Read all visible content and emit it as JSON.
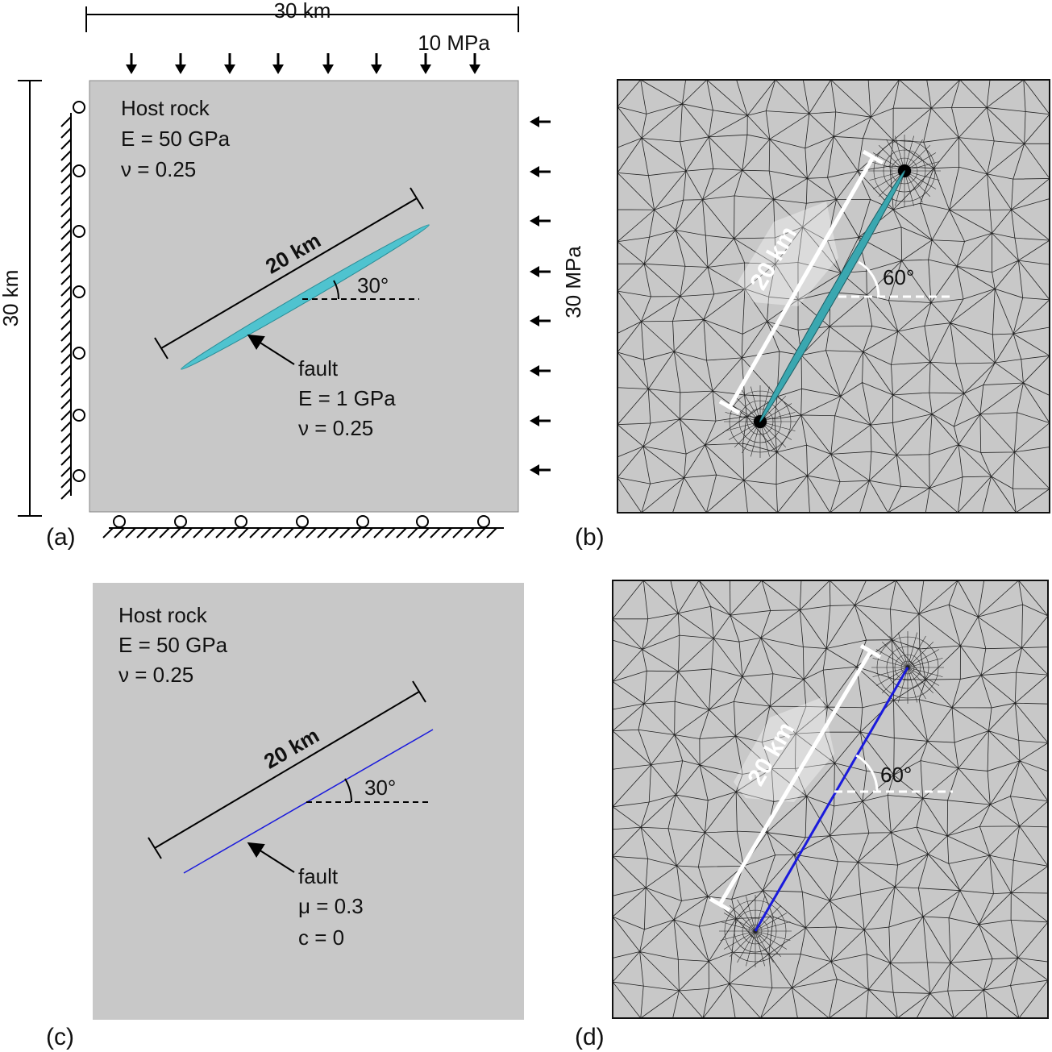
{
  "panels": [
    {
      "label": "(a)",
      "top_dimension": "30 km",
      "top_load": "10 MPa",
      "side_dimension": "30 km",
      "side_load": "30 MPa",
      "host_rock": [
        "Host rock",
        "E = 50 GPa",
        "ν = 0.25"
      ],
      "fault_length": "20 km",
      "fault_angle": "30°",
      "fault": [
        "fault",
        "E = 1 GPa",
        "ν = 0.25"
      ]
    },
    {
      "label": "(b)",
      "fault_length": "20 km",
      "fault_angle": "60°"
    },
    {
      "label": "(c)",
      "host_rock": [
        "Host rock",
        "E = 50 GPa",
        "ν = 0.25"
      ],
      "fault_length": "20 km",
      "fault_angle": "30°",
      "fault": [
        "fault",
        "μ = 0.3",
        "c = 0"
      ]
    },
    {
      "label": "(d)",
      "fault_length": "20 km",
      "fault_angle": "60°"
    }
  ]
}
